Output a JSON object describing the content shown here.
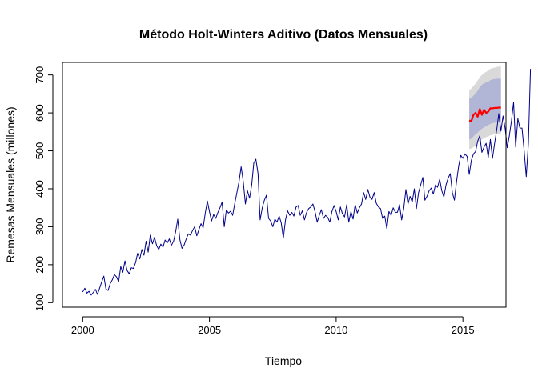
{
  "chart_data": {
    "type": "line",
    "title": "Método Holt-Winters Aditivo (Datos Mensuales)",
    "xlabel": "Tiempo",
    "ylabel": "Remesas Mensuales (millones)",
    "xlim": [
      1999.2,
      2016.7
    ],
    "ylim": [
      88,
      733
    ],
    "xticks": [
      2000,
      2005,
      2010,
      2015
    ],
    "yticks": [
      100,
      200,
      300,
      400,
      500,
      600,
      700
    ],
    "grid": false,
    "legend": "none",
    "colors": {
      "observed": "#00008b",
      "forecast": "#ff0000",
      "band80": "#b1b5d6",
      "band95": "#d9d9d9"
    },
    "series": [
      {
        "role": "observed",
        "x_start": 2000,
        "frequency": 12,
        "values": [
          128,
          138,
          125,
          130,
          120,
          127,
          135,
          122,
          138,
          155,
          170,
          136,
          132,
          150,
          160,
          174,
          168,
          155,
          195,
          180,
          210,
          185,
          176,
          192,
          190,
          205,
          230,
          215,
          240,
          225,
          262,
          233,
          278,
          255,
          272,
          250,
          240,
          254,
          246,
          265,
          257,
          268,
          251,
          262,
          287,
          320,
          266,
          243,
          252,
          268,
          281,
          278,
          290,
          300,
          276,
          292,
          308,
          297,
          335,
          368,
          340,
          315,
          332,
          322,
          338,
          350,
          365,
          300,
          344,
          336,
          341,
          330,
          362,
          390,
          418,
          458,
          420,
          360,
          395,
          375,
          410,
          468,
          478,
          440,
          318,
          350,
          370,
          383,
          322,
          315,
          300,
          320,
          312,
          328,
          310,
          270,
          318,
          342,
          330,
          338,
          328,
          352,
          356,
          330,
          342,
          318,
          338,
          348,
          352,
          360,
          340,
          312,
          330,
          345,
          322,
          330,
          325,
          312,
          340,
          356,
          340,
          318,
          352,
          334,
          326,
          358,
          312,
          340,
          320,
          358,
          336,
          350,
          360,
          390,
          372,
          398,
          378,
          372,
          390,
          362,
          352,
          348,
          322,
          328,
          295,
          340,
          330,
          350,
          338,
          338,
          358,
          318,
          348,
          398,
          360,
          380,
          365,
          400,
          348,
          390,
          410,
          430,
          370,
          380,
          395,
          402,
          386,
          410,
          404,
          425,
          395,
          378,
          410,
          428,
          440,
          390,
          370,
          420,
          460,
          488,
          480,
          492,
          485,
          438,
          475,
          492,
          498,
          525,
          540,
          496,
          510,
          520,
          482,
          530,
          480,
          520,
          555,
          598,
          552,
          592,
          560,
          508,
          540,
          580,
          628,
          510,
          585,
          560,
          560,
          500,
          432,
          520,
          716
        ]
      },
      {
        "role": "forecast",
        "x_start": 2015.25,
        "frequency": 12,
        "values": [
          580,
          578,
          595,
          600,
          590,
          610,
          595,
          608,
          600,
          603,
          612,
          612,
          613,
          613,
          614,
          614
        ]
      }
    ],
    "bands": {
      "x_start": 2015.25,
      "frequency": 12,
      "lo95": [
        505,
        506,
        510,
        514,
        520,
        526,
        530,
        533,
        536,
        538,
        541,
        542,
        544,
        545,
        545,
        546
      ],
      "hi95": [
        660,
        664,
        671,
        677,
        685,
        694,
        700,
        705,
        708,
        712,
        716,
        718,
        719,
        721,
        722,
        723
      ],
      "lo80": [
        530,
        532,
        538,
        544,
        548,
        554,
        558,
        562,
        565,
        568,
        571,
        573,
        574,
        575,
        576,
        576
      ],
      "hi80": [
        637,
        640,
        645,
        652,
        658,
        668,
        674,
        678,
        680,
        682,
        686,
        688,
        689,
        690,
        690,
        690
      ]
    }
  }
}
